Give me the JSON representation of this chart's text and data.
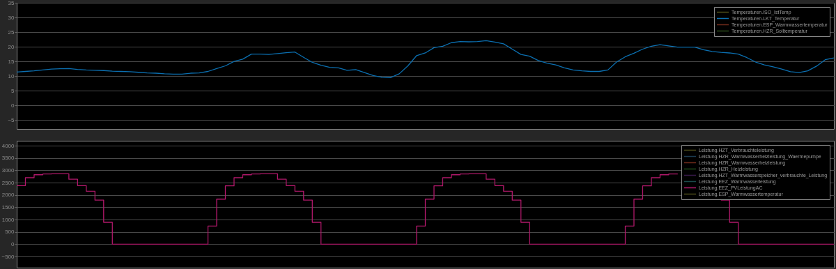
{
  "chart_data": [
    {
      "type": "line",
      "categories": [
        null,
        null,
        null,
        null,
        null,
        null,
        null,
        null,
        null,
        null,
        null,
        null,
        null,
        null,
        null,
        null,
        null,
        null,
        null,
        null,
        null,
        null,
        null,
        null,
        null,
        null,
        null,
        null,
        null,
        null,
        null,
        null,
        null,
        null,
        null,
        null,
        null,
        null,
        null,
        null,
        null,
        null,
        null,
        null,
        null,
        null,
        null,
        null,
        null,
        null,
        null,
        null,
        null,
        null,
        null,
        null,
        null,
        null,
        null,
        null,
        null,
        null,
        null,
        null,
        null,
        null,
        null,
        null,
        null,
        null,
        null,
        null,
        null,
        null,
        null,
        null,
        null,
        null,
        null,
        null,
        null,
        null,
        null,
        null,
        null,
        null,
        null,
        null,
        null,
        null,
        null,
        null,
        null,
        null,
        null
      ],
      "ylim": [
        -8,
        35
      ],
      "yticks": [
        -5,
        0,
        5,
        10,
        15,
        20,
        25,
        30,
        35
      ],
      "grid": "y",
      "legend": "top right",
      "tick_labels": "y",
      "series": [
        {
          "name": "Temperaturen.ISO_IstTemp",
          "color": "#4d4d1a",
          "values": [
            null,
            null,
            null,
            null,
            null,
            null,
            null,
            null,
            null,
            null,
            null,
            null,
            null,
            null,
            null,
            null,
            null,
            null,
            null,
            null,
            null,
            null,
            null,
            null,
            null,
            null,
            null,
            null,
            null,
            null,
            null,
            null,
            null,
            null,
            null,
            null,
            null,
            null,
            null,
            null,
            null,
            null,
            null,
            null,
            null,
            null,
            null,
            null,
            null,
            null,
            null,
            null,
            null,
            null,
            null,
            null,
            null,
            null,
            null,
            null,
            null,
            null,
            null,
            null,
            null,
            null,
            null,
            null,
            null,
            null,
            null,
            null,
            null,
            null,
            null,
            null,
            null,
            null,
            null,
            null,
            null,
            null,
            null,
            null,
            null,
            null,
            null,
            null,
            null,
            null,
            null,
            null,
            null,
            null,
            null
          ]
        },
        {
          "name": "Temperaturen.LKT_Temperatur",
          "color": "#0b6fb0",
          "values": [
            11.4,
            11.6,
            11.8,
            12.1,
            12.4,
            12.5,
            12.6,
            12.3,
            12.1,
            12.0,
            11.9,
            11.7,
            11.6,
            11.5,
            11.3,
            11.1,
            11.0,
            10.8,
            10.7,
            10.7,
            11.0,
            11.1,
            11.6,
            12.6,
            13.5,
            15.0,
            15.8,
            17.5,
            17.5,
            17.4,
            17.7,
            18.0,
            18.2,
            16.4,
            14.7,
            13.7,
            13.0,
            12.8,
            12.0,
            12.2,
            11.2,
            10.2,
            9.6,
            9.5,
            10.8,
            13.5,
            17.0,
            17.9,
            19.7,
            20.2,
            21.4,
            21.8,
            21.7,
            21.8,
            22.1,
            21.6,
            21.0,
            19.2,
            17.4,
            16.8,
            15.3,
            14.4,
            13.8,
            12.8,
            12.1,
            11.8,
            11.6,
            11.6,
            12.1,
            14.8,
            16.6,
            17.8,
            19.2,
            20.2,
            20.7,
            20.3,
            19.9,
            19.9,
            19.9,
            19.0,
            18.4,
            18.1,
            17.9,
            17.5,
            16.3,
            14.8,
            13.8,
            13.2,
            12.4,
            11.5,
            11.2,
            11.8,
            13.4,
            15.6,
            16.2
          ]
        },
        {
          "name": "Temperaturen.ESP_Warmwassertemperatur",
          "color": "#6e2a1a",
          "values": [
            null,
            null,
            null,
            null,
            null,
            null,
            null,
            null,
            null,
            null,
            null,
            null,
            null,
            null,
            null,
            null,
            null,
            null,
            null,
            null,
            null,
            null,
            null,
            null,
            null,
            null,
            null,
            null,
            null,
            null,
            null,
            null,
            null,
            null,
            null,
            null,
            null,
            null,
            null,
            null,
            null,
            null,
            null,
            null,
            null,
            null,
            null,
            null,
            null,
            null,
            null,
            null,
            null,
            null,
            null,
            null,
            null,
            null,
            null,
            null,
            null,
            null,
            null,
            null,
            null,
            null,
            null,
            null,
            null,
            null,
            null,
            null,
            null,
            null,
            null,
            null,
            null,
            null,
            null,
            null,
            null,
            null,
            null,
            null,
            null,
            null,
            null,
            null,
            null,
            null,
            null,
            null,
            null,
            null,
            null
          ]
        },
        {
          "name": "Temperaturen.HZR_Solltemperatur",
          "color": "#2a4a1a",
          "values": [
            null,
            null,
            null,
            null,
            null,
            null,
            null,
            null,
            null,
            null,
            null,
            null,
            null,
            null,
            null,
            null,
            null,
            null,
            null,
            null,
            null,
            null,
            null,
            null,
            null,
            null,
            null,
            null,
            null,
            null,
            null,
            null,
            null,
            null,
            null,
            null,
            null,
            null,
            null,
            null,
            null,
            null,
            null,
            null,
            null,
            null,
            null,
            null,
            null,
            null,
            null,
            null,
            null,
            null,
            null,
            null,
            null,
            null,
            null,
            null,
            null,
            null,
            null,
            null,
            null,
            null,
            null,
            null,
            null,
            null,
            null,
            null,
            null,
            null,
            null,
            null,
            null,
            null,
            null,
            null,
            null,
            null,
            null,
            null,
            null,
            null,
            null,
            null,
            null,
            null,
            null,
            null,
            null,
            null,
            null
          ]
        }
      ]
    },
    {
      "type": "step",
      "categories": [
        null,
        null,
        null,
        null,
        null,
        null,
        null,
        null,
        null,
        null,
        null,
        null,
        null,
        null,
        null,
        null,
        null,
        null,
        null,
        null,
        null,
        null,
        null,
        null,
        null,
        null,
        null,
        null,
        null,
        null,
        null,
        null,
        null,
        null,
        null,
        null,
        null,
        null,
        null,
        null,
        null,
        null,
        null,
        null,
        null,
        null,
        null,
        null,
        null,
        null,
        null,
        null,
        null,
        null,
        null,
        null,
        null,
        null,
        null,
        null,
        null,
        null,
        null,
        null,
        null,
        null,
        null,
        null,
        null,
        null,
        null,
        null,
        null,
        null,
        null,
        null,
        null,
        null,
        null,
        null,
        null,
        null,
        null,
        null,
        null,
        null,
        null,
        null,
        null,
        null,
        null,
        null,
        null,
        null,
        null
      ],
      "ylim": [
        -950,
        4200
      ],
      "yticks": [
        -500,
        0,
        500,
        1000,
        1500,
        2000,
        2500,
        3000,
        3500,
        4000
      ],
      "grid": "y",
      "legend": "top right",
      "tick_labels": "y",
      "series": [
        {
          "name": "Leistung.HZT_Verbrauchteleistung",
          "color": "#4d4d1a",
          "values": [
            null,
            null,
            null,
            null,
            null,
            null,
            null,
            null,
            null,
            null,
            null,
            null,
            null,
            null,
            null,
            null,
            null,
            null,
            null,
            null,
            null,
            null,
            null,
            null,
            null,
            null,
            null,
            null,
            null,
            null,
            null,
            null,
            null,
            null,
            null,
            null,
            null,
            null,
            null,
            null,
            null,
            null,
            null,
            null,
            null,
            null,
            null,
            null,
            null,
            null,
            null,
            null,
            null,
            null,
            null,
            null,
            null,
            null,
            null,
            null,
            null,
            null,
            null,
            null,
            null,
            null,
            null,
            null,
            null,
            null,
            null,
            null,
            null,
            null,
            null,
            null,
            null,
            null,
            null,
            null,
            null,
            null,
            null,
            null,
            null,
            null,
            null,
            null,
            null,
            null,
            null,
            null,
            null,
            null,
            null
          ]
        },
        {
          "name": "Leistung.HZR_Warmwasserheizleistung_Waermepumpe",
          "color": "#1a3a50",
          "values": [
            null,
            null,
            null,
            null,
            null,
            null,
            null,
            null,
            null,
            null,
            null,
            null,
            null,
            null,
            null,
            null,
            null,
            null,
            null,
            null,
            null,
            null,
            null,
            null,
            null,
            null,
            null,
            null,
            null,
            null,
            null,
            null,
            null,
            null,
            null,
            null,
            null,
            null,
            null,
            null,
            null,
            null,
            null,
            null,
            null,
            null,
            null,
            null,
            null,
            null,
            null,
            null,
            null,
            null,
            null,
            null,
            null,
            null,
            null,
            null,
            null,
            null,
            null,
            null,
            null,
            null,
            null,
            null,
            null,
            null,
            null,
            null,
            null,
            null,
            null,
            null,
            null,
            null,
            null,
            null,
            null,
            null,
            null,
            null,
            null,
            null,
            null,
            null,
            null,
            null,
            null,
            null,
            null,
            null,
            null
          ]
        },
        {
          "name": "Leistung.HZR_Warmwasserheizleistung",
          "color": "#6e2a1a",
          "values": [
            null,
            null,
            null,
            null,
            null,
            null,
            null,
            null,
            null,
            null,
            null,
            null,
            null,
            null,
            null,
            null,
            null,
            null,
            null,
            null,
            null,
            null,
            null,
            null,
            null,
            null,
            null,
            null,
            null,
            null,
            null,
            null,
            null,
            null,
            null,
            null,
            null,
            null,
            null,
            null,
            null,
            null,
            null,
            null,
            null,
            null,
            null,
            null,
            null,
            null,
            null,
            null,
            null,
            null,
            null,
            null,
            null,
            null,
            null,
            null,
            null,
            null,
            null,
            null,
            null,
            null,
            null,
            null,
            null,
            null,
            null,
            null,
            null,
            null,
            null,
            null,
            null,
            null,
            null,
            null,
            null,
            null,
            null,
            null,
            null,
            null,
            null,
            null,
            null,
            null,
            null,
            null,
            null,
            null,
            null
          ]
        },
        {
          "name": "Leistung.HZR_Heizleistung",
          "color": "#1f4a1a",
          "values": [
            null,
            null,
            null,
            null,
            null,
            null,
            null,
            null,
            null,
            null,
            null,
            null,
            null,
            null,
            null,
            null,
            null,
            null,
            null,
            null,
            null,
            null,
            null,
            null,
            null,
            null,
            null,
            null,
            null,
            null,
            null,
            null,
            null,
            null,
            null,
            null,
            null,
            null,
            null,
            null,
            null,
            null,
            null,
            null,
            null,
            null,
            null,
            null,
            null,
            null,
            null,
            null,
            null,
            null,
            null,
            null,
            null,
            null,
            null,
            null,
            null,
            null,
            null,
            null,
            null,
            null,
            null,
            null,
            null,
            null,
            null,
            null,
            null,
            null,
            null,
            null,
            null,
            null,
            null,
            null,
            null,
            null,
            null,
            null,
            null,
            null,
            null,
            null,
            null,
            null,
            null,
            null,
            null,
            null,
            null
          ]
        },
        {
          "name": "Leistung.HZT_Warmwasserspeicher_verbrauchte_Leistung",
          "color": "#3a1a4d",
          "values": [
            null,
            null,
            null,
            null,
            null,
            null,
            null,
            null,
            null,
            null,
            null,
            null,
            null,
            null,
            null,
            null,
            null,
            null,
            null,
            null,
            null,
            null,
            null,
            null,
            null,
            null,
            null,
            null,
            null,
            null,
            null,
            null,
            null,
            null,
            null,
            null,
            null,
            null,
            null,
            null,
            null,
            null,
            null,
            null,
            null,
            null,
            null,
            null,
            null,
            null,
            null,
            null,
            null,
            null,
            null,
            null,
            null,
            null,
            null,
            null,
            null,
            null,
            null,
            null,
            null,
            null,
            null,
            null,
            null,
            null,
            null,
            null,
            null,
            null,
            null,
            null,
            null,
            null,
            null,
            null,
            null,
            null,
            null,
            null,
            null,
            null,
            null,
            null,
            null,
            null,
            null,
            null,
            null,
            null,
            null
          ]
        },
        {
          "name": "Leistung.EEZ_Warmwasserleistung",
          "color": "#1a4a4a",
          "values": [
            null,
            null,
            null,
            null,
            null,
            null,
            null,
            null,
            null,
            null,
            null,
            null,
            null,
            null,
            null,
            null,
            null,
            null,
            null,
            null,
            null,
            null,
            null,
            null,
            null,
            null,
            null,
            null,
            null,
            null,
            null,
            null,
            null,
            null,
            null,
            null,
            null,
            null,
            null,
            null,
            null,
            null,
            null,
            null,
            null,
            null,
            null,
            null,
            null,
            null,
            null,
            null,
            null,
            null,
            null,
            null,
            null,
            null,
            null,
            null,
            null,
            null,
            null,
            null,
            null,
            null,
            null,
            null,
            null,
            null,
            null,
            null,
            null,
            null,
            null,
            null,
            null,
            null,
            null,
            null,
            null,
            null,
            null,
            null,
            null,
            null,
            null,
            null,
            null,
            null,
            null,
            null,
            null,
            null,
            null
          ]
        },
        {
          "name": "Leistung.EEZ_PVLeistungAC",
          "color": "#b0186a",
          "values": [
            2380,
            2700,
            2820,
            2850,
            2860,
            2860,
            2640,
            2380,
            2150,
            1790,
            890,
            0,
            0,
            0,
            0,
            0,
            0,
            0,
            0,
            0,
            0,
            0,
            740,
            1830,
            2370,
            2700,
            2820,
            2850,
            2860,
            2860,
            2640,
            2380,
            2150,
            1790,
            890,
            0,
            0,
            0,
            0,
            0,
            0,
            0,
            0,
            0,
            0,
            0,
            740,
            1830,
            2370,
            2700,
            2820,
            2850,
            2860,
            2860,
            2640,
            2380,
            2150,
            1790,
            890,
            0,
            0,
            0,
            0,
            0,
            0,
            0,
            0,
            0,
            0,
            0,
            740,
            1830,
            2370,
            2700,
            2820,
            2850,
            2860,
            null,
            null,
            null,
            null,
            1790,
            890,
            0,
            0,
            0,
            0,
            0,
            0,
            0,
            0,
            0,
            0,
            0,
            0
          ]
        },
        {
          "name": "Leistung.ESP_Warmwassertemperatur",
          "color": "#4d4d1a",
          "values": [
            null,
            null,
            null,
            null,
            null,
            null,
            null,
            null,
            null,
            null,
            null,
            null,
            null,
            null,
            null,
            null,
            null,
            null,
            null,
            null,
            null,
            null,
            null,
            null,
            null,
            null,
            null,
            null,
            null,
            null,
            null,
            null,
            null,
            null,
            null,
            null,
            null,
            null,
            null,
            null,
            null,
            null,
            null,
            null,
            null,
            null,
            null,
            null,
            null,
            null,
            null,
            null,
            null,
            null,
            null,
            null,
            null,
            null,
            null,
            null,
            null,
            null,
            null,
            null,
            null,
            null,
            null,
            null,
            null,
            null,
            null,
            null,
            null,
            null,
            null,
            null,
            null,
            null,
            null,
            null,
            null,
            null,
            null,
            null,
            null,
            null,
            null,
            null,
            null,
            null,
            null,
            null,
            null,
            null,
            null
          ]
        }
      ]
    }
  ]
}
